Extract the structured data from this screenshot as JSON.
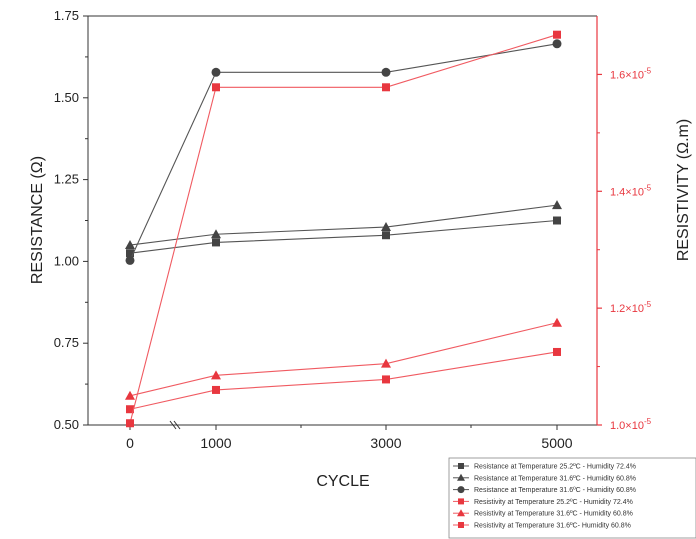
{
  "chart_data": {
    "type": "line",
    "xlabel": "CYCLE",
    "ylabel_left": "RESISTANCE (Ω)",
    "ylabel_right": "RESISTIVITY (Ω.m)",
    "x": [
      0,
      1000,
      3000,
      5000
    ],
    "x_ticks": [
      "0",
      "1000",
      "3000",
      "5000"
    ],
    "ylim_left": [
      0.5,
      1.75
    ],
    "y_ticks_left": [
      "0.50",
      "0.75",
      "1.00",
      "1.25",
      "1.50",
      "1.75"
    ],
    "ylim_right": [
      1e-05,
      1.7e-05
    ],
    "y_ticks_right": [
      {
        "mantissa": "1.0×10",
        "exp": "-5"
      },
      {
        "mantissa": "1.2×10",
        "exp": "-5"
      },
      {
        "mantissa": "1.4×10",
        "exp": "-5"
      },
      {
        "mantissa": "1.6×10",
        "exp": "-5"
      }
    ],
    "grid": false,
    "legend_position": "bottom-right",
    "series": [
      {
        "name": "Resistance at Temperature 25.2ºC - Humidity 72.4%",
        "axis": "left",
        "marker": "square",
        "color": "#444444",
        "values": [
          1.025,
          1.058,
          1.08,
          1.125
        ]
      },
      {
        "name": "Resistance at Temperature 31.6ºC - Humidity 60.8%",
        "axis": "left",
        "marker": "triangle",
        "color": "#444444",
        "values": [
          1.05,
          1.083,
          1.105,
          1.172
        ]
      },
      {
        "name": "Resistance at Temperature 31.6ºC - Humidity 60.8%",
        "axis": "left",
        "marker": "circle",
        "color": "#444444",
        "values": [
          1.003,
          1.578,
          1.578,
          1.665
        ]
      },
      {
        "name": "Resistivity at Temperature 25.2ºC - Humidity 72.4%",
        "axis": "right",
        "marker": "square",
        "color": "#e8373f",
        "values": [
          1.027e-05,
          1.06e-05,
          1.078e-05,
          1.125e-05
        ]
      },
      {
        "name": "Resistivity at Temperature 31.6ºC - Humidity 60.8%",
        "axis": "right",
        "marker": "triangle",
        "color": "#e8373f",
        "values": [
          1.05e-05,
          1.085e-05,
          1.105e-05,
          1.175e-05
        ]
      },
      {
        "name": "Resistivity at Temperature 31.6ºC- Humidity 60.8%",
        "axis": "right",
        "marker": "square",
        "color": "#e8373f",
        "values": [
          1.003e-05,
          1.578e-05,
          1.578e-05,
          1.668e-05
        ]
      }
    ]
  }
}
